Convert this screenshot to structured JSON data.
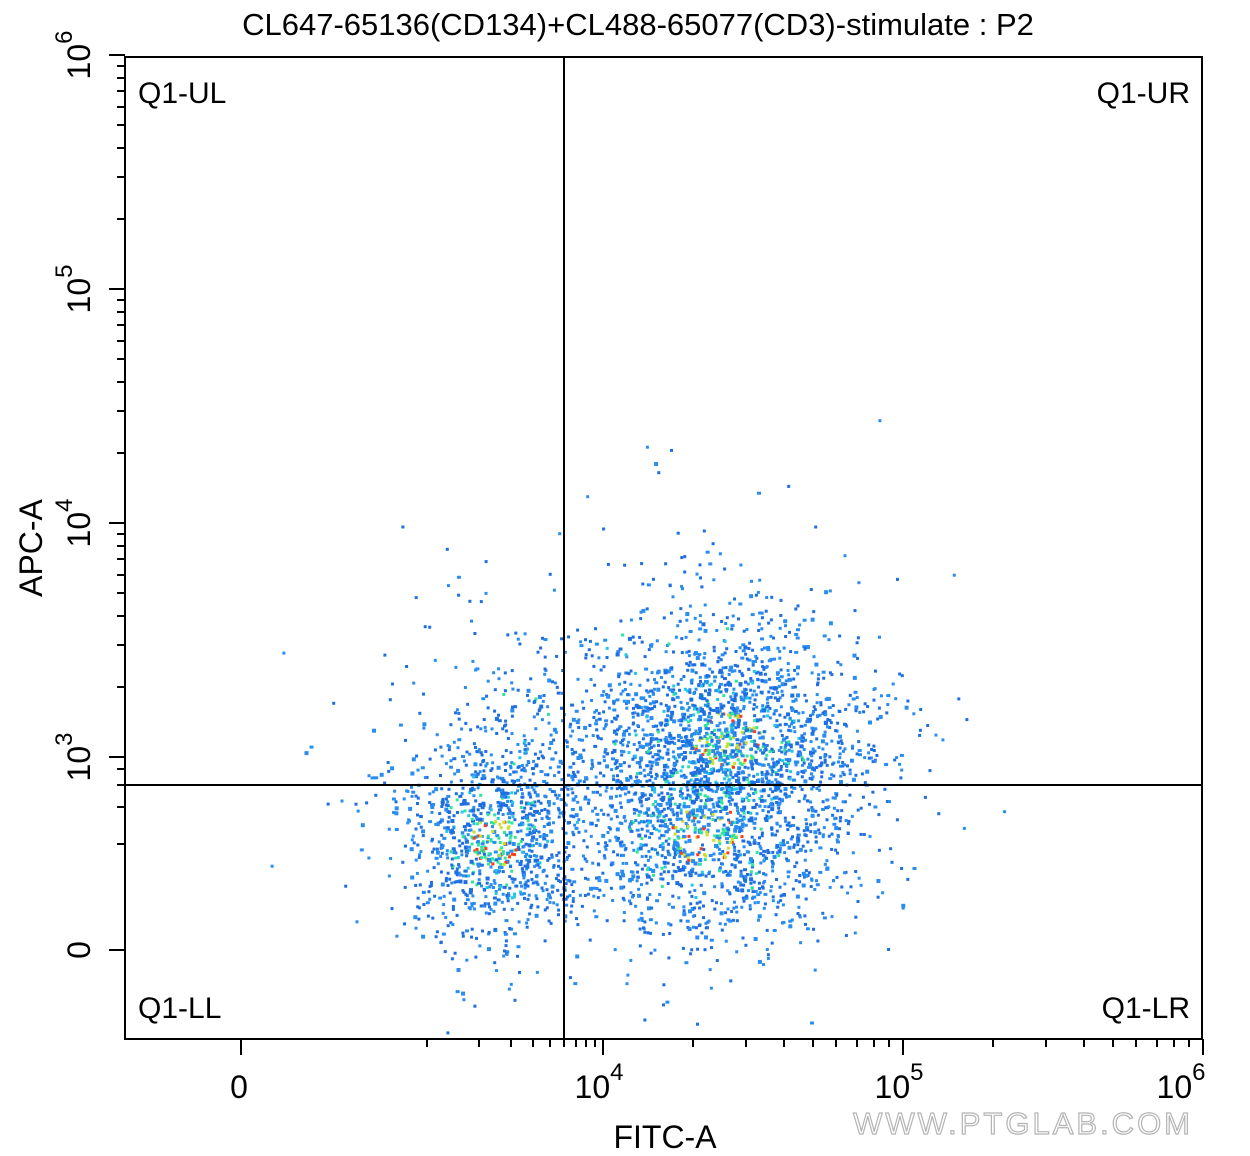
{
  "chart_data": {
    "type": "scatter",
    "title": "CL647-65136(CD134)+CL488-65077(CD3)-stimulate : P2",
    "xlabel": "FITC-A",
    "ylabel": "APC-A",
    "x_scale": "biexponential",
    "y_scale": "biexponential",
    "xlim": [
      -3000,
      1000000
    ],
    "ylim": [
      -700,
      1000000
    ],
    "x_ticks": [
      {
        "value": 0,
        "label": "0"
      },
      {
        "value": 10000,
        "base": "10",
        "exp": "4"
      },
      {
        "value": 100000,
        "base": "10",
        "exp": "5"
      },
      {
        "value": 1000000,
        "base": "10",
        "exp": "6"
      }
    ],
    "y_ticks": [
      {
        "value": 0,
        "label": "0"
      },
      {
        "value": 1000,
        "base": "10",
        "exp": "3"
      },
      {
        "value": 10000,
        "base": "10",
        "exp": "4"
      },
      {
        "value": 100000,
        "base": "10",
        "exp": "5"
      },
      {
        "value": 1000000,
        "base": "10",
        "exp": "6"
      }
    ],
    "gates": {
      "x_threshold": 6000,
      "y_threshold": 600
    },
    "quadrants": [
      {
        "label": "Q1-UL",
        "position": "top-left"
      },
      {
        "label": "Q1-UR",
        "position": "top-right"
      },
      {
        "label": "Q1-LL",
        "position": "bottom-left"
      },
      {
        "label": "Q1-LR",
        "position": "bottom-right"
      }
    ],
    "populations": [
      {
        "name": "cluster-lower-left",
        "center_x": 2400,
        "center_y": 220,
        "count": 950
      },
      {
        "name": "cluster-main",
        "center_x": 26000,
        "center_y": 1200,
        "count": 1500
      },
      {
        "name": "cluster-lower-right",
        "center_x": 22000,
        "center_y": 250,
        "count": 1100
      },
      {
        "name": "scatter-upper-left",
        "center_x": 3500,
        "center_y": 900,
        "count": 220
      },
      {
        "name": "scatter-wide",
        "center_x": 20000,
        "center_y": 1500,
        "count": 350
      }
    ],
    "density_colors": [
      "#1f6fe0",
      "#2a8ef0",
      "#22c8e6",
      "#2ee69a",
      "#c8e02a",
      "#ff3b1f"
    ],
    "grid": false,
    "legend": "none"
  },
  "watermark": "WWW.PTGLAB.COM"
}
